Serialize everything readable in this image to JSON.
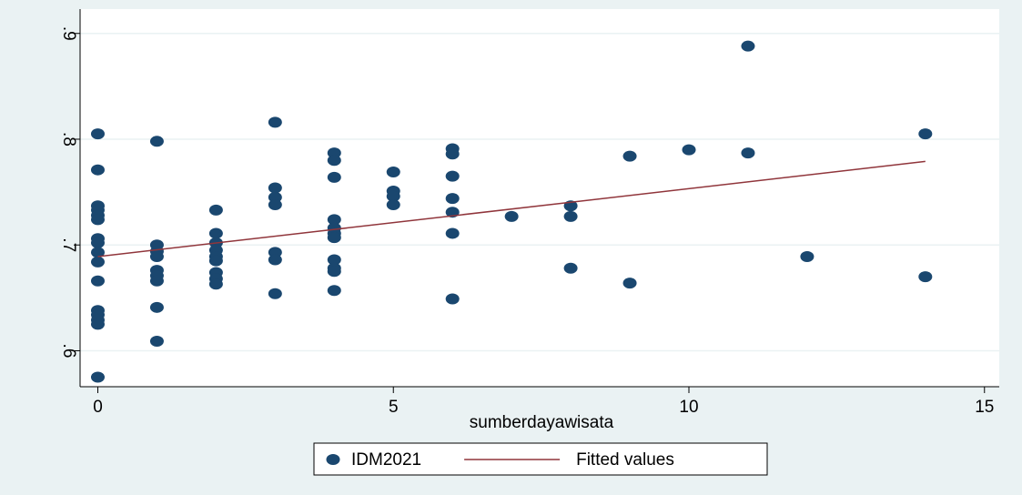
{
  "chart_data": {
    "type": "scatter",
    "xlabel": "sumberdayawisata",
    "xlim": [
      -0.3,
      15.25
    ],
    "ylim": [
      0.566,
      0.923
    ],
    "xticks": [
      0,
      5,
      10,
      15
    ],
    "yticks": [
      {
        "value": 0.6,
        "label": ".6"
      },
      {
        "value": 0.7,
        "label": ".7"
      },
      {
        "value": 0.8,
        "label": ".8"
      },
      {
        "value": 0.9,
        "label": ".9"
      }
    ],
    "grid": true,
    "series": [
      {
        "name": "IDM2021",
        "type": "scatter",
        "color": "#1a476f",
        "x": [
          0,
          0,
          0,
          0,
          0,
          0,
          0,
          0,
          0,
          0,
          0,
          0,
          0,
          0,
          0,
          0,
          1,
          1,
          1,
          1,
          1,
          1,
          1,
          1,
          1,
          2,
          2,
          2,
          2,
          2,
          2,
          2,
          2,
          2,
          3,
          3,
          3,
          3,
          3,
          3,
          3,
          4,
          4,
          4,
          4,
          4,
          4,
          4,
          4,
          4,
          4,
          4,
          5,
          5,
          5,
          5,
          6,
          6,
          6,
          6,
          6,
          6,
          6,
          7,
          8,
          8,
          8,
          9,
          9,
          10,
          11,
          11,
          12,
          14,
          14
        ],
        "values": [
          0.805,
          0.771,
          0.737,
          0.733,
          0.728,
          0.724,
          0.706,
          0.702,
          0.693,
          0.684,
          0.666,
          0.638,
          0.634,
          0.629,
          0.625,
          0.575,
          0.798,
          0.7,
          0.694,
          0.689,
          0.676,
          0.671,
          0.666,
          0.641,
          0.609,
          0.733,
          0.711,
          0.702,
          0.695,
          0.689,
          0.685,
          0.674,
          0.668,
          0.663,
          0.816,
          0.754,
          0.745,
          0.738,
          0.693,
          0.686,
          0.654,
          0.787,
          0.78,
          0.764,
          0.724,
          0.716,
          0.711,
          0.707,
          0.686,
          0.678,
          0.675,
          0.657,
          0.769,
          0.751,
          0.746,
          0.738,
          0.791,
          0.786,
          0.765,
          0.744,
          0.731,
          0.711,
          0.649,
          0.727,
          0.737,
          0.727,
          0.678,
          0.784,
          0.664,
          0.79,
          0.888,
          0.787,
          0.689,
          0.805,
          0.67
        ]
      },
      {
        "name": "Fitted values",
        "type": "line",
        "color": "#90353b",
        "x": [
          0,
          14
        ],
        "values": [
          0.689,
          0.779
        ]
      }
    ]
  }
}
